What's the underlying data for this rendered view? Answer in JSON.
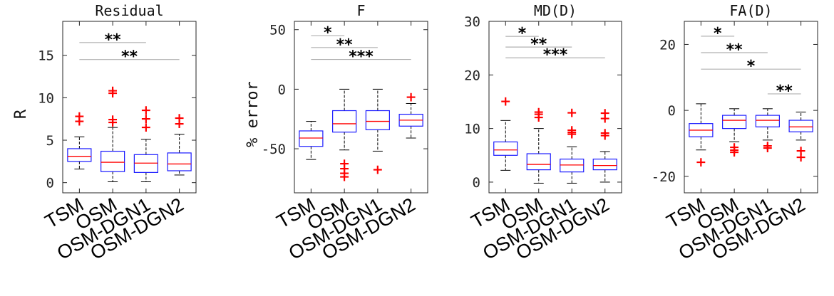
{
  "chart_data": [
    {
      "type": "box",
      "title": "Residual",
      "ylabel": "R",
      "ylim": [
        -1.2,
        19
      ],
      "yticks": [
        0,
        5,
        10,
        15
      ],
      "categories": [
        "TSM",
        "OSM",
        "OSM-DGN1",
        "OSM-DGN2"
      ],
      "boxes": [
        {
          "q1": 2.5,
          "median": 3.1,
          "q3": 4.0,
          "whislo": 1.6,
          "whishi": 5.4,
          "outliers": [
            7.3,
            7.9
          ]
        },
        {
          "q1": 1.3,
          "median": 2.4,
          "q3": 3.7,
          "whislo": 0.1,
          "whishi": 6.5,
          "outliers": [
            7.2,
            7.5,
            10.6,
            10.9
          ]
        },
        {
          "q1": 1.2,
          "median": 2.3,
          "q3": 3.3,
          "whislo": 0.1,
          "whishi": 5.1,
          "outliers": [
            6.6,
            7.6,
            8.6
          ]
        },
        {
          "q1": 1.4,
          "median": 2.2,
          "q3": 3.5,
          "whislo": 0.9,
          "whishi": 5.7,
          "outliers": [
            7.0,
            7.7
          ]
        }
      ],
      "significance": [
        {
          "from": 1,
          "to": 3,
          "y": 16.5,
          "label": "**"
        },
        {
          "from": 1,
          "to": 4,
          "y": 14.5,
          "label": "**"
        }
      ]
    },
    {
      "type": "box",
      "title": "F",
      "ylabel": "% error",
      "ylim": [
        -87,
        57
      ],
      "yticks": [
        -50,
        0,
        50
      ],
      "categories": [
        "TSM",
        "OSM",
        "OSM-DGN1",
        "OSM-DGN2"
      ],
      "boxes": [
        {
          "q1": -48,
          "median": -41,
          "q3": -35,
          "whislo": -59,
          "whishi": -27,
          "outliers": []
        },
        {
          "q1": -36,
          "median": -29,
          "q3": -18,
          "whislo": -51,
          "whishi": 0,
          "outliers": [
            -62,
            -66,
            -70,
            -73
          ]
        },
        {
          "q1": -34,
          "median": -27,
          "q3": -18,
          "whislo": -52,
          "whishi": 0,
          "outliers": [
            -67
          ]
        },
        {
          "q1": -31,
          "median": -26,
          "q3": -21,
          "whislo": -41,
          "whishi": -12,
          "outliers": [
            -6
          ]
        }
      ],
      "significance": [
        {
          "from": 1,
          "to": 2,
          "y": 45,
          "label": "*"
        },
        {
          "from": 1,
          "to": 3,
          "y": 35,
          "label": "**"
        },
        {
          "from": 1,
          "to": 4,
          "y": 25,
          "label": "***"
        }
      ]
    },
    {
      "type": "box",
      "title": "MD(D)",
      "ylabel": "",
      "ylim": [
        -2,
        30
      ],
      "yticks": [
        0,
        10,
        20,
        30
      ],
      "categories": [
        "TSM",
        "OSM",
        "OSM-DGN1",
        "OSM-DGN2"
      ],
      "boxes": [
        {
          "q1": 5,
          "median": 6,
          "q3": 7.5,
          "whislo": 2.2,
          "whishi": 11.5,
          "outliers": [
            15.2
          ]
        },
        {
          "q1": 2.3,
          "median": 3.3,
          "q3": 5.3,
          "whislo": -0.2,
          "whishi": 10,
          "outliers": [
            12.2,
            12.8,
            13.2
          ]
        },
        {
          "q1": 1.9,
          "median": 3.2,
          "q3": 4.3,
          "whislo": -0.2,
          "whishi": 6.6,
          "outliers": [
            9.1,
            9.4,
            9.8,
            13.1
          ]
        },
        {
          "q1": 2.3,
          "median": 3.1,
          "q3": 4.3,
          "whislo": 0,
          "whishi": 5.7,
          "outliers": [
            8.8,
            9.3,
            12,
            13
          ]
        }
      ],
      "significance": [
        {
          "from": 1,
          "to": 2,
          "y": 27.2,
          "label": "*"
        },
        {
          "from": 1,
          "to": 3,
          "y": 25.2,
          "label": "**"
        },
        {
          "from": 1,
          "to": 4,
          "y": 23.2,
          "label": "***"
        }
      ]
    },
    {
      "type": "box",
      "title": "FA(D)",
      "ylabel": "",
      "ylim": [
        -25,
        27
      ],
      "yticks": [
        -20,
        0,
        20
      ],
      "categories": [
        "TSM",
        "OSM",
        "OSM-DGN1",
        "OSM-DGN2"
      ],
      "boxes": [
        {
          "q1": -8,
          "median": -6,
          "q3": -4,
          "whislo": -12,
          "whishi": 2,
          "outliers": [
            -15.5
          ]
        },
        {
          "q1": -5.5,
          "median": -3,
          "q3": -1.5,
          "whislo": -9.5,
          "whishi": 0.5,
          "outliers": [
            -11,
            -11.8,
            -12.5
          ]
        },
        {
          "q1": -5,
          "median": -3,
          "q3": -1.5,
          "whislo": -9,
          "whishi": 0.5,
          "outliers": [
            -10.5,
            -11.2
          ]
        },
        {
          "q1": -6.5,
          "median": -5,
          "q3": -3,
          "whislo": -9,
          "whishi": -0.5,
          "outliers": [
            -12,
            -14
          ]
        }
      ],
      "significance": [
        {
          "from": 1,
          "to": 2,
          "y": 22.5,
          "label": "*"
        },
        {
          "from": 1,
          "to": 3,
          "y": 17.5,
          "label": "**"
        },
        {
          "from": 1,
          "to": 4,
          "y": 12.5,
          "label": "*"
        },
        {
          "from": 3,
          "to": 4,
          "y": 5,
          "label": "**"
        }
      ]
    }
  ],
  "colors": {
    "box": "#1a1aff",
    "median": "#ff0000",
    "outlier": "#ff0000",
    "significance_line": "#b0b0b0",
    "axis": "#262626"
  }
}
